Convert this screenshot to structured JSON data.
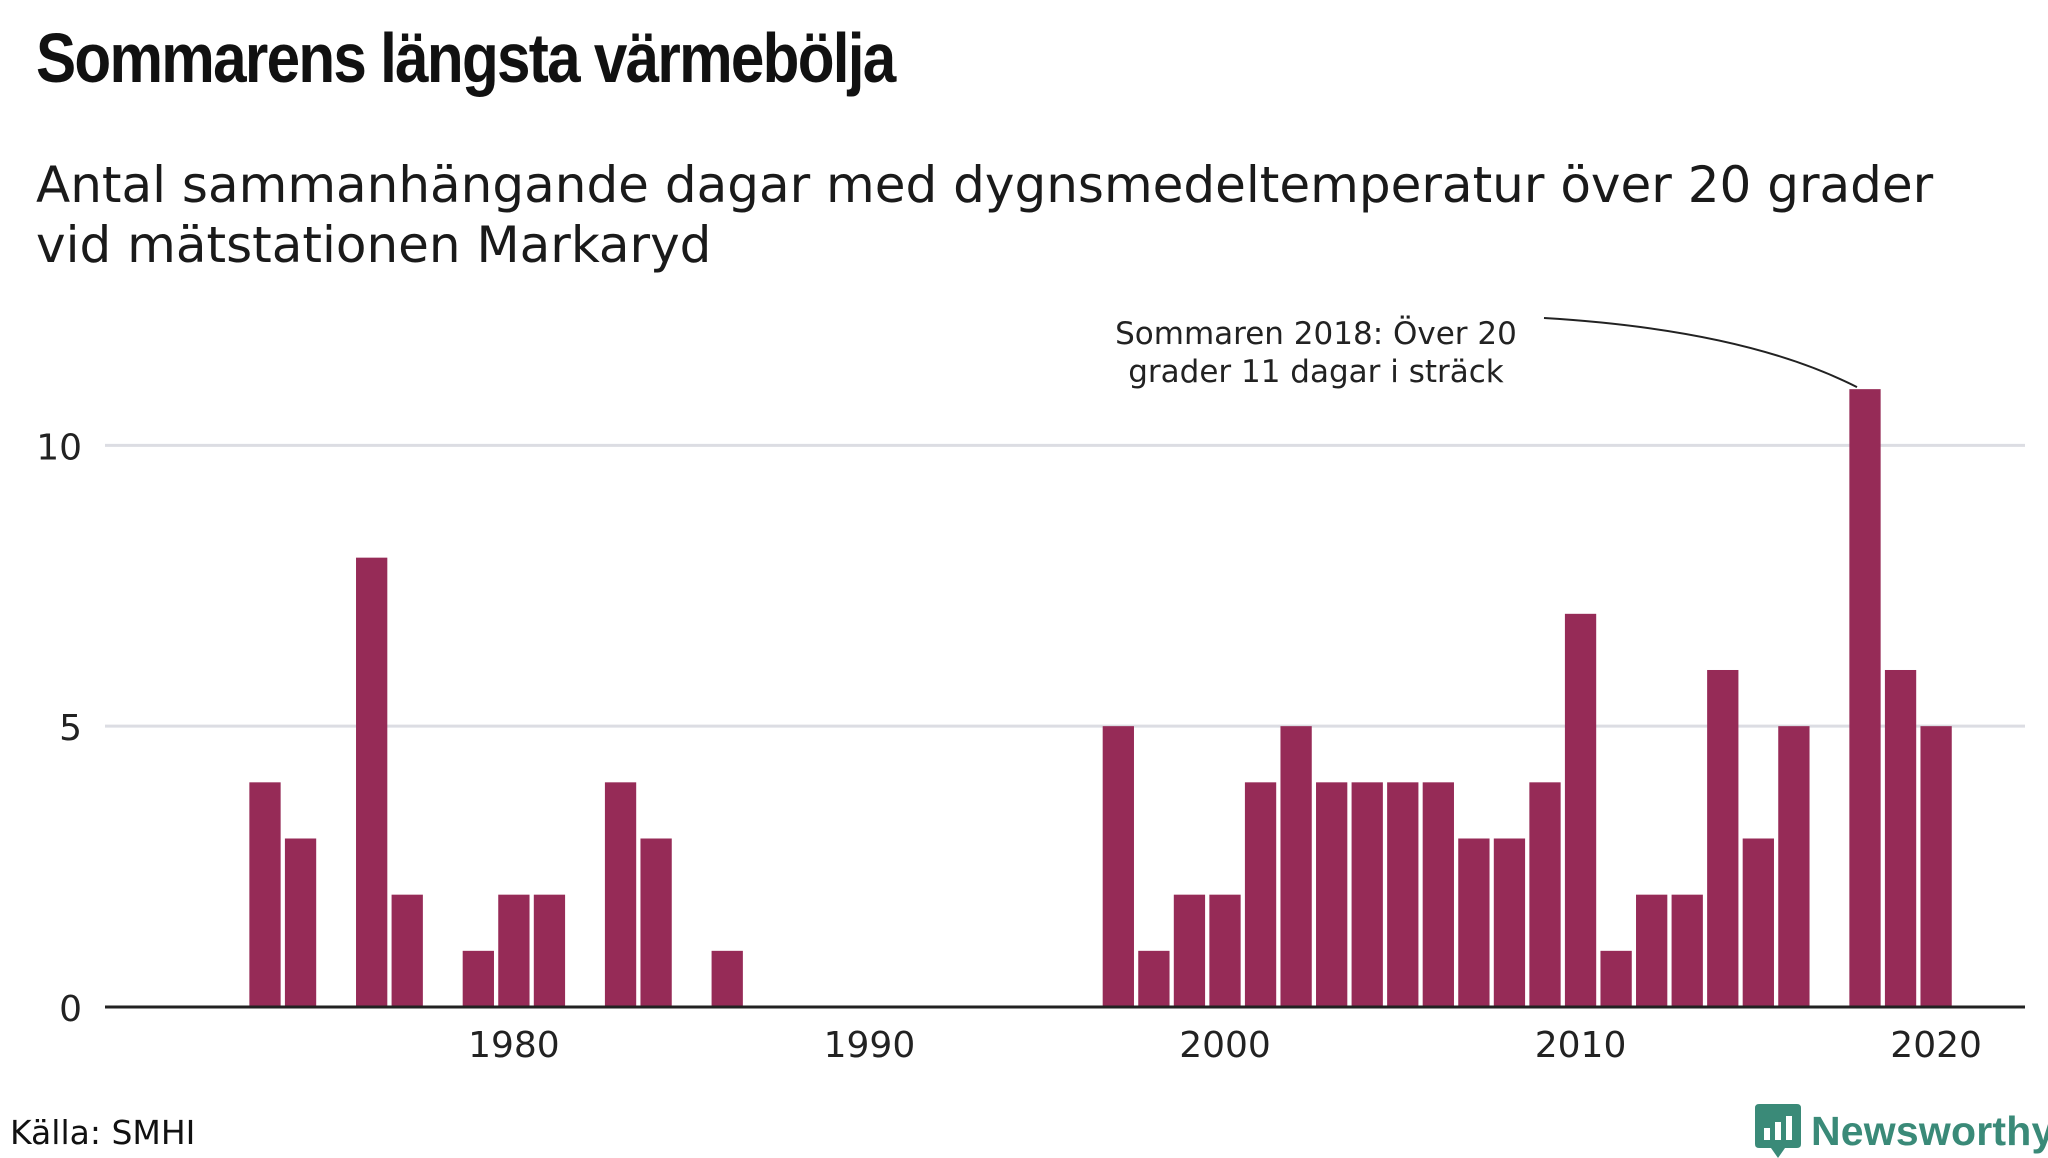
{
  "title": "Sommarens längsta värmebölja",
  "subtitle": [
    "Antal sammanhängande dagar med dygnsmedeltemperatur över 20 grader",
    "vid mätstationen Markaryd"
  ],
  "source": "Källa: SMHI",
  "brand": "Newsworthy",
  "colors": {
    "bar": "#962b57",
    "grid": "#dcdde3",
    "axis": "#222222",
    "brand": "#3a8a78"
  },
  "chart_data": {
    "type": "bar",
    "x": [
      1973,
      1974,
      1976,
      1977,
      1979,
      1980,
      1981,
      1983,
      1984,
      1986,
      1997,
      1998,
      1999,
      2000,
      2001,
      2002,
      2003,
      2004,
      2005,
      2006,
      2007,
      2008,
      2009,
      2010,
      2011,
      2012,
      2013,
      2014,
      2015,
      2016,
      2018,
      2019,
      2020
    ],
    "values": [
      4,
      3,
      8,
      2,
      1,
      2,
      2,
      4,
      3,
      1,
      5,
      1,
      2,
      2,
      4,
      5,
      4,
      4,
      4,
      4,
      3,
      3,
      4,
      7,
      1,
      2,
      2,
      6,
      3,
      5,
      11,
      6,
      5
    ],
    "xlim": [
      1968.5,
      2022.5
    ],
    "ylim": [
      0,
      11
    ],
    "x_ticks": [
      "1980",
      "1990",
      "2000",
      "2010",
      "2020"
    ],
    "y_ticks": [
      "0",
      "5",
      "10"
    ],
    "grid": true,
    "annotation": {
      "lines": [
        "Sommaren 2018: Över 20",
        "grader 11 dagar i sträck"
      ],
      "year": 2018,
      "value": 11
    }
  }
}
